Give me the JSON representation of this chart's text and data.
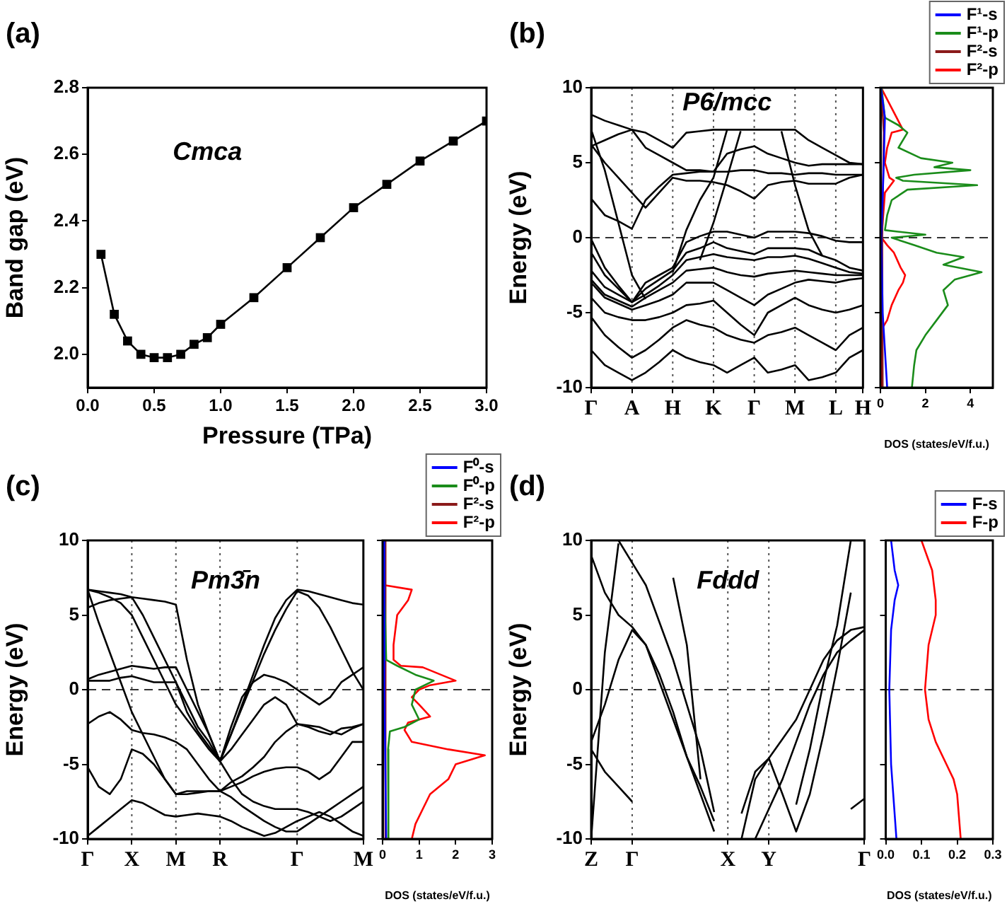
{
  "chart_data": [
    {
      "type": "line",
      "title": "(a)",
      "xlabel": "Pressure (TPa)",
      "ylabel": "Band gap (eV)",
      "annotations": [
        "Cmca"
      ],
      "marker": "square",
      "x": [
        0.1,
        0.2,
        0.3,
        0.4,
        0.5,
        0.6,
        0.7,
        0.8,
        0.9,
        1.0,
        1.25,
        1.5,
        1.75,
        2.0,
        2.25,
        2.5,
        2.75,
        3.0
      ],
      "series": [
        {
          "color": "#000000",
          "values": [
            2.3,
            2.12,
            2.04,
            2.0,
            1.99,
            1.99,
            2.0,
            2.03,
            2.05,
            2.09,
            2.17,
            2.26,
            2.35,
            2.44,
            2.51,
            2.58,
            2.64,
            2.7
          ]
        }
      ],
      "xlim": [
        0,
        3
      ],
      "xticks": [
        {
          "value": 0,
          "label": "0.0"
        },
        {
          "value": 0.5,
          "label": "0.5"
        },
        {
          "value": 1,
          "label": "1.0"
        },
        {
          "value": 1.5,
          "label": "1.5"
        },
        {
          "value": 2,
          "label": "2.0"
        },
        {
          "value": 2.5,
          "label": "2.5"
        },
        {
          "value": 3,
          "label": "3.0"
        }
      ],
      "ylim": [
        1.9,
        2.8
      ],
      "yticks": [
        {
          "value": 2,
          "label": "2.0"
        },
        {
          "value": 2.2,
          "label": "2.2"
        },
        {
          "value": 2.4,
          "label": "2.4"
        },
        {
          "value": 2.6,
          "label": "2.6"
        },
        {
          "value": 2.8,
          "label": "2.8"
        }
      ]
    },
    {
      "type": "line",
      "title": "(b)",
      "ylabel": "Energy (eV)",
      "annotations": [
        "P6/mcc"
      ],
      "marker": "none",
      "grid": "x",
      "categories": [
        "Γ",
        null,
        null,
        "A",
        null,
        null,
        "H",
        null,
        null,
        "K",
        null,
        null,
        "Γ",
        null,
        null,
        "M",
        null,
        null,
        "L",
        null,
        "H"
      ],
      "series": [
        {
          "color": "#000000",
          "values": [
            8.2,
            7.8,
            7.5,
            7.2,
            6.0,
            5.5,
            5.0,
            4.5,
            4.5,
            4.4,
            5.6,
            5.9,
            6.1,
            5.6,
            5.3,
            5.0,
            4.8,
            4.9,
            4.9,
            4.9,
            4.9
          ]
        },
        {
          "color": "#000000",
          "values": [
            6.1,
            6.5,
            6.9,
            7.2,
            7.0,
            6.5,
            6.0,
            7.0,
            7.1,
            7.2,
            7.2,
            7.2,
            7.2,
            7.2,
            7.2,
            7.2,
            6.5,
            6.0,
            5.5,
            5.0,
            4.9
          ]
        },
        {
          "color": "#000000",
          "values": [
            6.2,
            5.0,
            4.0,
            3.0,
            2.0,
            3.0,
            4.0,
            3.8,
            3.8,
            3.7,
            3.5,
            3.1,
            2.6,
            3.5,
            3.7,
            3.8,
            3.6,
            3.6,
            3.6,
            4.0,
            4.2
          ]
        },
        {
          "color": "#000000",
          "values": [
            2.6,
            1.5,
            1.1,
            0.6,
            2.5,
            3.4,
            4.2,
            4.3,
            4.4,
            4.4,
            4.4,
            4.5,
            4.5,
            4.3,
            4.3,
            4.2,
            4.3,
            4.3,
            4.2,
            4.2,
            4.2
          ]
        },
        {
          "color": "#000000",
          "values": [
            -0.1,
            -2,
            -3.2,
            -4.3,
            -3,
            -2.5,
            -2,
            -0.3,
            0.1,
            0.4,
            0.4,
            0.2,
            0,
            0.4,
            0.4,
            0.4,
            0.3,
            0.1,
            -0.2,
            -0.3,
            -0.3
          ]
        },
        {
          "color": "#000000",
          "values": [
            -1,
            -2.5,
            -3.4,
            -4.3,
            -3.4,
            -2.8,
            -2.2,
            -1,
            -0.7,
            -0.3,
            -0.7,
            -0.9,
            -1.1,
            -0.7,
            -0.7,
            -0.7,
            -0.8,
            -1.2,
            -1.5,
            -2,
            -2.2
          ]
        },
        {
          "color": "#000000",
          "values": [
            -2.2,
            -3.3,
            -3.8,
            -4.3,
            -3.8,
            -3.2,
            -2.5,
            -1.5,
            -1.3,
            -1.1,
            -1.3,
            -1.4,
            -1.5,
            -1.3,
            -1.3,
            -1.2,
            -1.4,
            -1.7,
            -2,
            -2.3,
            -2.4
          ]
        },
        {
          "color": "#000000",
          "values": [
            -2.8,
            -3.8,
            -4.2,
            -4.6,
            -4,
            -3.5,
            -3,
            -2.2,
            -2.1,
            -2,
            -2.3,
            -2.5,
            -2.6,
            -2.4,
            -2.3,
            -2.2,
            -2.3,
            -2.4,
            -2.5,
            -2.5,
            -2.5
          ]
        },
        {
          "color": "#000000",
          "values": [
            -3,
            -4,
            -4.4,
            -4.8,
            -4.5,
            -4.2,
            -3.8,
            -3,
            -3,
            -3,
            -3.5,
            -4,
            -4.5,
            -3.8,
            -3.4,
            -3,
            -2.8,
            -2.9,
            -3,
            -2.8,
            -2.7
          ]
        },
        {
          "color": "#000000",
          "values": [
            -4,
            -5,
            -5.3,
            -5.5,
            -5.5,
            -5.3,
            -5,
            -4.5,
            -4.4,
            -4.2,
            -5,
            -5.8,
            -6.5,
            -5,
            -4.5,
            -4,
            -4.5,
            -4.8,
            -5,
            -4.8,
            -4.5
          ]
        },
        {
          "color": "#000000",
          "values": [
            -5.3,
            -6.5,
            -7.3,
            -8,
            -7.5,
            -6.8,
            -6,
            -5.5,
            -5.8,
            -6,
            -6.5,
            -6.8,
            -7,
            -6.5,
            -6.3,
            -6,
            -6.5,
            -7,
            -7.5,
            -6.5,
            -6
          ]
        },
        {
          "color": "#000000",
          "values": [
            -7.5,
            -8.5,
            -9,
            -9.5,
            -9,
            -8.3,
            -7.5,
            -8,
            -8.3,
            -8.5,
            -9,
            -8.5,
            -8,
            -9,
            -8.8,
            -8.5,
            -9.5,
            -9.3,
            -9,
            -8,
            -7.5
          ]
        },
        {
          "color": "#000000",
          "values": [
            7.2,
            4.5,
            1,
            -2.5,
            -4.1,
            null,
            null,
            null,
            null,
            null,
            null,
            null,
            null,
            null,
            null,
            null,
            null,
            null,
            null,
            null,
            null
          ]
        },
        {
          "color": "#000000",
          "values": [
            null,
            null,
            null,
            null,
            null,
            null,
            -2.3,
            0.5,
            2.5,
            4,
            7.2,
            null,
            null,
            null,
            null,
            null,
            null,
            null,
            null,
            null,
            null
          ]
        },
        {
          "color": "#000000",
          "values": [
            null,
            null,
            null,
            null,
            null,
            null,
            null,
            null,
            -1.5,
            1,
            4,
            7.1,
            null,
            null,
            null,
            null,
            null,
            null,
            null,
            null,
            null
          ]
        },
        {
          "color": "#000000",
          "values": [
            null,
            null,
            null,
            null,
            null,
            null,
            null,
            null,
            null,
            null,
            null,
            null,
            null,
            null,
            7.1,
            3.5,
            0.5,
            -1.2,
            null,
            null,
            null
          ]
        }
      ],
      "ylim": [
        -10,
        10
      ],
      "yticks": [
        -10,
        -5,
        0,
        5,
        10
      ],
      "ref_lines": [
        {
          "axis": "y",
          "value": 0,
          "line_style": "dashed"
        }
      ]
    },
    {
      "type": "line",
      "xlabel": "DOS (states/eV/f.u.)",
      "legend": "top right",
      "marker": "none",
      "tick_labels": "x",
      "series": [
        {
          "name": "F¹-s",
          "color": "#0000ff",
          "x": [
            0.02,
            0.2,
            0.15,
            0.04,
            0.1,
            0.3
          ],
          "values": [
            10,
            8,
            5,
            0,
            -5,
            -10
          ]
        },
        {
          "name": "F¹-p",
          "color": "#1a8c1a",
          "x": [
            0.05,
            0.2,
            0.8,
            1.2,
            0.8,
            1.8,
            3.2,
            2.4,
            4,
            1.5,
            0.7,
            1,
            4.3,
            1.2,
            0.5,
            0.3,
            0.2,
            2,
            0.5,
            1.5,
            2.5,
            3.7,
            2.8,
            4.5,
            3.3,
            2.8,
            3,
            2.5,
            2,
            1.6,
            1.5,
            1.4
          ],
          "values": [
            10,
            8,
            7.5,
            7,
            6,
            5.3,
            5,
            4.7,
            4.5,
            4.2,
            4,
            3.8,
            3.5,
            3.2,
            2.5,
            1.5,
            0.5,
            0.2,
            0,
            -0.5,
            -1,
            -1.3,
            -1.8,
            -2.3,
            -2.8,
            -3.5,
            -4.5,
            -5.5,
            -6.5,
            -7.5,
            -8.5,
            -10
          ]
        },
        {
          "name": "F²-s",
          "color": "#8b1a1a",
          "x": [
            0.03,
            0.15,
            0.08,
            0.1
          ],
          "values": [
            10,
            7,
            0,
            -10
          ]
        },
        {
          "name": "F²-p",
          "color": "#ff0000",
          "x": [
            0.03,
            1,
            0.5,
            0.3,
            0.2,
            0.4,
            0.6,
            0.2,
            0.05,
            0.3,
            0.6,
            0.9,
            1.1,
            1,
            0.8,
            0.5,
            0.3,
            0.1,
            0.05
          ],
          "values": [
            10,
            7.2,
            7,
            6,
            5,
            4,
            3.8,
            3,
            0,
            -0.5,
            -1,
            -2,
            -2.5,
            -3,
            -3.5,
            -4.5,
            -5.5,
            -6,
            -10
          ]
        }
      ],
      "xlim": [
        0,
        5
      ],
      "xticks": [
        0,
        2,
        4
      ],
      "ylim": [
        -10,
        10
      ],
      "yticks": [
        -10,
        -5,
        0,
        5,
        10
      ],
      "ref_lines": [
        {
          "axis": "y",
          "value": 0,
          "line_style": "dashed"
        }
      ]
    },
    {
      "type": "line",
      "title": "(c)",
      "ylabel": "Energy (eV)",
      "annotations": [
        "Pm3̄n"
      ],
      "marker": "none",
      "grid": "x",
      "categories": [
        "Γ",
        null,
        null,
        null,
        "X",
        null,
        null,
        null,
        "M",
        null,
        null,
        null,
        "R",
        null,
        null,
        null,
        null,
        null,
        null,
        "Γ",
        null,
        null,
        null,
        null,
        null,
        "M"
      ],
      "series": [
        {
          "color": "#000000",
          "values": [
            6.7,
            6.6,
            6.5,
            6.4,
            6.2,
            6.1,
            6.0,
            5.9,
            5.7,
            2,
            -1,
            -3,
            -4.8,
            -3,
            -1,
            1,
            3,
            4.8,
            6,
            6.7,
            6.6,
            6.4,
            6.2,
            6.0,
            5.8,
            5.7
          ]
        },
        {
          "color": "#000000",
          "values": [
            6.7,
            4.5,
            2.5,
            0.5,
            -1.5,
            -3,
            -4.5,
            -6,
            -7,
            -6.8,
            -6.8,
            -6.8,
            -6.8,
            -6.5,
            -6.2,
            -5.8,
            -5.5,
            -5.3,
            -5.2,
            -5.2,
            -5.5,
            -6,
            -5.5,
            -4.5,
            -3.5,
            -3.5
          ]
        },
        {
          "color": "#000000",
          "values": [
            6.7,
            6.5,
            6.2,
            5.8,
            5.0,
            3.5,
            2,
            0.5,
            -1,
            -2,
            -3,
            -4,
            -4.8,
            -6,
            -7,
            -7.5,
            -7.8,
            -8,
            -8,
            -8,
            -8.2,
            -8.5,
            -8.8,
            -8.5,
            -8,
            -7.5
          ]
        },
        {
          "color": "#000000",
          "values": [
            0.7,
            1,
            1.2,
            1.4,
            1.6,
            1.5,
            1.4,
            1.5,
            1.5,
            0,
            -1.5,
            -3,
            -4.8,
            -2.5,
            -0.5,
            0.5,
            1,
            0.8,
            0.5,
            0,
            -0.5,
            -1,
            -0.5,
            0.5,
            1,
            1.5
          ]
        },
        {
          "color": "#000000",
          "values": [
            0.6,
            0.6,
            0.6,
            0.8,
            0.9,
            0.7,
            0.5,
            0.5,
            0.5,
            -1,
            -2.5,
            -3.5,
            -4.8,
            -4,
            -3,
            -2,
            -1,
            -0.5,
            -1,
            -2.3,
            -2.4,
            -2.5,
            -2.8,
            -3,
            -2.6,
            -2.3
          ]
        },
        {
          "color": "#000000",
          "values": [
            -2.3,
            -1.8,
            -1.5,
            -2,
            -2.7,
            -2.9,
            -3,
            -3.2,
            -3.5,
            -4,
            -5,
            -6,
            -6.8,
            -6.2,
            -5.8,
            -5.2,
            -4.5,
            -3.5,
            -2.8,
            -2.3,
            -2.5,
            -2.8,
            -3,
            -2.6,
            -2.5,
            -2.3
          ]
        },
        {
          "color": "#000000",
          "values": [
            -5.2,
            -6.5,
            -7,
            -6,
            -4,
            -4.3,
            -5,
            -6,
            -7,
            -7,
            -6.9,
            -6.8,
            -6.8,
            -7.2,
            -7.8,
            -8.3,
            -8.8,
            -9.2,
            -9.5,
            -9.5,
            -9,
            -8.5,
            -8,
            -7.5,
            -7,
            -6.5
          ]
        },
        {
          "color": "#000000",
          "values": [
            -9.8,
            -9.2,
            -8.6,
            -8,
            -7.4,
            -7.6,
            -8,
            -8.4,
            -8.5,
            -8.4,
            -8.3,
            -8.4,
            -8.5,
            -8.8,
            -9.2,
            -9.5,
            -9.8,
            -9.6,
            -9.2,
            -8.8,
            -8.5,
            -8.2,
            -8.5,
            -9,
            -9.5,
            -9.8
          ]
        },
        {
          "color": "#000000",
          "values": [
            5.5,
            5.8,
            6,
            6.1,
            6.2,
            5,
            3.5,
            2,
            0.5,
            -1.5,
            -2.8,
            -3.8,
            -4.8,
            -3,
            -1.2,
            0.6,
            2.4,
            4,
            5.4,
            6.6,
            6.3,
            5.5,
            4.2,
            2.7,
            1.2,
            0
          ]
        }
      ],
      "ylim": [
        -10,
        10
      ],
      "yticks": [
        -10,
        -5,
        0,
        5,
        10
      ],
      "ref_lines": [
        {
          "axis": "y",
          "value": 0,
          "line_style": "dashed"
        }
      ]
    },
    {
      "type": "line",
      "xlabel": "DOS (states/eV/f.u.)",
      "legend": "top right",
      "marker": "none",
      "tick_labels": "x",
      "series": [
        {
          "name": "F⁰-s",
          "color": "#0000ff",
          "x": [
            0.03,
            0.05,
            0.1
          ],
          "values": [
            10,
            0,
            -10
          ]
        },
        {
          "name": "F⁰-p",
          "color": "#1a8c1a",
          "x": [
            0.03,
            0.05,
            0.1,
            0.4,
            0.9,
            1.4,
            0.9,
            0.8,
            1,
            0.6,
            0.2,
            0.15,
            0.16
          ],
          "values": [
            10,
            6.5,
            2,
            1.6,
            1,
            0.6,
            0,
            -1,
            -2,
            -2.5,
            -2.8,
            -4,
            -10
          ]
        },
        {
          "name": "F²-s",
          "color": "#8b1a1a",
          "x": [
            0.06,
            0.08
          ],
          "values": [
            10,
            -10
          ]
        },
        {
          "name": "F²-p",
          "color": "#ff0000",
          "x": [
            0.03,
            0.05,
            0.8,
            0.7,
            0.4,
            0.3,
            0.3,
            0.5,
            1.1,
            2,
            1.3,
            1,
            0.8,
            1,
            1.3,
            0.7,
            0.6,
            0.8,
            1.8,
            2.8,
            2,
            1.8,
            1.3,
            1.1,
            0.9,
            0.8
          ],
          "values": [
            10,
            7,
            6.7,
            6,
            5,
            3,
            2,
            1.6,
            1.5,
            0.6,
            0.3,
            0,
            -0.5,
            -1,
            -1.8,
            -2.2,
            -2.7,
            -3.5,
            -4,
            -4.4,
            -5,
            -6,
            -7,
            -8,
            -9,
            -10
          ]
        }
      ],
      "xlim": [
        0,
        3
      ],
      "xticks": [
        0,
        1,
        2,
        3
      ],
      "ylim": [
        -10,
        10
      ],
      "yticks": [
        -10,
        -5,
        0,
        5,
        10
      ],
      "ref_lines": [
        {
          "axis": "y",
          "value": 0,
          "line_style": "dashed"
        }
      ]
    },
    {
      "type": "line",
      "title": "(d)",
      "ylabel": "Energy (eV)",
      "annotations": [
        "Fddd"
      ],
      "marker": "none",
      "grid": "x",
      "categories": [
        "Z",
        null,
        null,
        "Γ",
        null,
        null,
        null,
        null,
        null,
        null,
        "X",
        null,
        null,
        "Y",
        null,
        null,
        null,
        null,
        null,
        null,
        "Γ"
      ],
      "series": [
        {
          "color": "#000000",
          "values": [
            9,
            6.5,
            5,
            4.2,
            3,
            1,
            -1.5,
            -4.5,
            -7,
            -9.5,
            null,
            null,
            null,
            null,
            null,
            null,
            null,
            null,
            null,
            null,
            null
          ]
        },
        {
          "color": "#000000",
          "values": [
            -3.5,
            -1,
            2,
            4,
            3,
            0.5,
            -2,
            -4.5,
            -6.5,
            -8.8,
            null,
            null,
            null,
            null,
            null,
            null,
            null,
            null,
            null,
            null,
            null
          ]
        },
        {
          "color": "#000000",
          "values": [
            -4,
            -5.5,
            -6.5,
            -7.5,
            null,
            null,
            null,
            null,
            null,
            null,
            null,
            null,
            null,
            null,
            null,
            null,
            null,
            null,
            null,
            null,
            null
          ]
        },
        {
          "color": "#000000",
          "values": [
            -10,
            2.5,
            9.8,
            null,
            null,
            null,
            null,
            null,
            null,
            null,
            null,
            null,
            null,
            null,
            null,
            null,
            null,
            null,
            null,
            null,
            null
          ]
        },
        {
          "color": "#000000",
          "values": [
            null,
            null,
            10,
            8.5,
            7,
            4.5,
            2,
            -1,
            -4,
            -8.2,
            null,
            null,
            null,
            null,
            null,
            null,
            null,
            null,
            null,
            null,
            null
          ]
        },
        {
          "color": "#000000",
          "values": [
            null,
            null,
            null,
            null,
            null,
            null,
            7.5,
            3,
            -6,
            null,
            null,
            null,
            null,
            null,
            null,
            null,
            null,
            null,
            null,
            null,
            null
          ]
        },
        {
          "color": "#000000",
          "values": [
            null,
            null,
            null,
            null,
            null,
            null,
            null,
            null,
            null,
            null,
            null,
            -10,
            -6,
            -4.6,
            -7,
            -9.5,
            -7,
            -3,
            1.5,
            6.5,
            null
          ]
        },
        {
          "color": "#000000",
          "values": [
            null,
            null,
            null,
            null,
            null,
            null,
            null,
            null,
            null,
            null,
            null,
            -8.3,
            -5.5,
            -4.6,
            -3.3,
            -2,
            0,
            2,
            3.3,
            4,
            4.2
          ]
        },
        {
          "color": "#000000",
          "values": [
            null,
            null,
            null,
            null,
            null,
            null,
            null,
            null,
            null,
            null,
            null,
            null,
            -10,
            -8,
            -6,
            -3.5,
            -1,
            1,
            2.5,
            3.3,
            4
          ]
        },
        {
          "color": "#000000",
          "values": [
            null,
            null,
            null,
            null,
            null,
            null,
            null,
            null,
            null,
            null,
            null,
            null,
            null,
            null,
            null,
            -7.7,
            -4,
            0.5,
            4.3,
            10,
            null
          ]
        },
        {
          "color": "#000000",
          "values": [
            null,
            null,
            null,
            null,
            null,
            null,
            null,
            null,
            null,
            null,
            null,
            null,
            null,
            null,
            null,
            null,
            null,
            null,
            null,
            -8,
            -7.3
          ]
        }
      ],
      "ylim": [
        -10,
        10
      ],
      "yticks": [
        -10,
        -5,
        0,
        5,
        10
      ],
      "ref_lines": [
        {
          "axis": "y",
          "value": 0,
          "line_style": "dashed"
        }
      ]
    },
    {
      "type": "line",
      "xlabel": "DOS (states/eV/f.u.)",
      "legend": "top right",
      "marker": "none",
      "tick_labels": "x",
      "series": [
        {
          "name": "F-s",
          "color": "#0000ff",
          "x": [
            0.015,
            0.025,
            0.035,
            0.025,
            0.015,
            0.01,
            0.015,
            0.03
          ],
          "values": [
            10,
            8,
            7,
            6,
            4,
            0,
            -5,
            -10
          ]
        },
        {
          "name": "F-p",
          "color": "#ff0000",
          "x": [
            0.1,
            0.13,
            0.14,
            0.14,
            0.12,
            0.11,
            0.12,
            0.14,
            0.17,
            0.19,
            0.2,
            0.21
          ],
          "values": [
            10,
            8,
            6,
            5,
            3,
            0,
            -2,
            -3.5,
            -5,
            -6,
            -7,
            -10
          ]
        }
      ],
      "xlim": [
        0,
        0.3
      ],
      "xticks": [
        {
          "value": 0,
          "label": "0.0"
        },
        {
          "value": 0.1,
          "label": "0.1"
        },
        {
          "value": 0.2,
          "label": "0.2"
        },
        {
          "value": 0.3,
          "label": "0.3"
        }
      ],
      "ylim": [
        -10,
        10
      ],
      "yticks": [
        -10,
        -5,
        0,
        5,
        10
      ],
      "ref_lines": [
        {
          "axis": "y",
          "value": 0,
          "line_style": "dashed"
        }
      ]
    }
  ]
}
